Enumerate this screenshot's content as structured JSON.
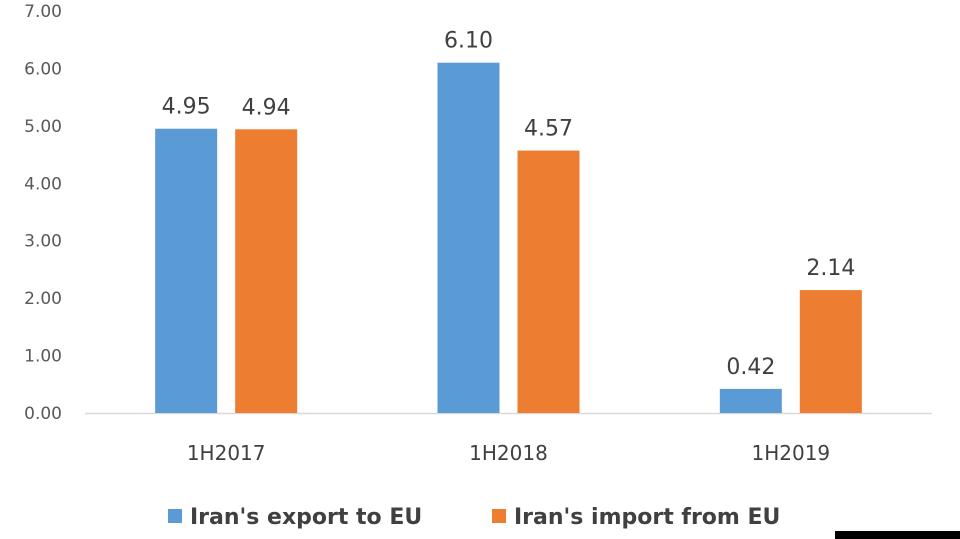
{
  "chart_data": {
    "type": "bar",
    "categories": [
      "1H2017",
      "1H2018",
      "1H2019"
    ],
    "series": [
      {
        "name": "Iran's export to EU",
        "values": [
          4.95,
          6.1,
          0.42
        ],
        "labels": [
          "4.95",
          "6.10",
          "0.42"
        ],
        "color": "#5b9bd5"
      },
      {
        "name": "Iran's import from EU",
        "values": [
          4.94,
          4.57,
          2.14
        ],
        "labels": [
          "4.94",
          "4.57",
          "2.14"
        ],
        "color": "#ed7d31"
      }
    ],
    "ylim": [
      0,
      7
    ],
    "yticks": [
      "0.00",
      "1.00",
      "2.00",
      "3.00",
      "4.00",
      "5.00",
      "6.00",
      "7.00"
    ],
    "title": "",
    "xlabel": "",
    "ylabel": "",
    "grid": false,
    "legend_position": "bottom"
  }
}
